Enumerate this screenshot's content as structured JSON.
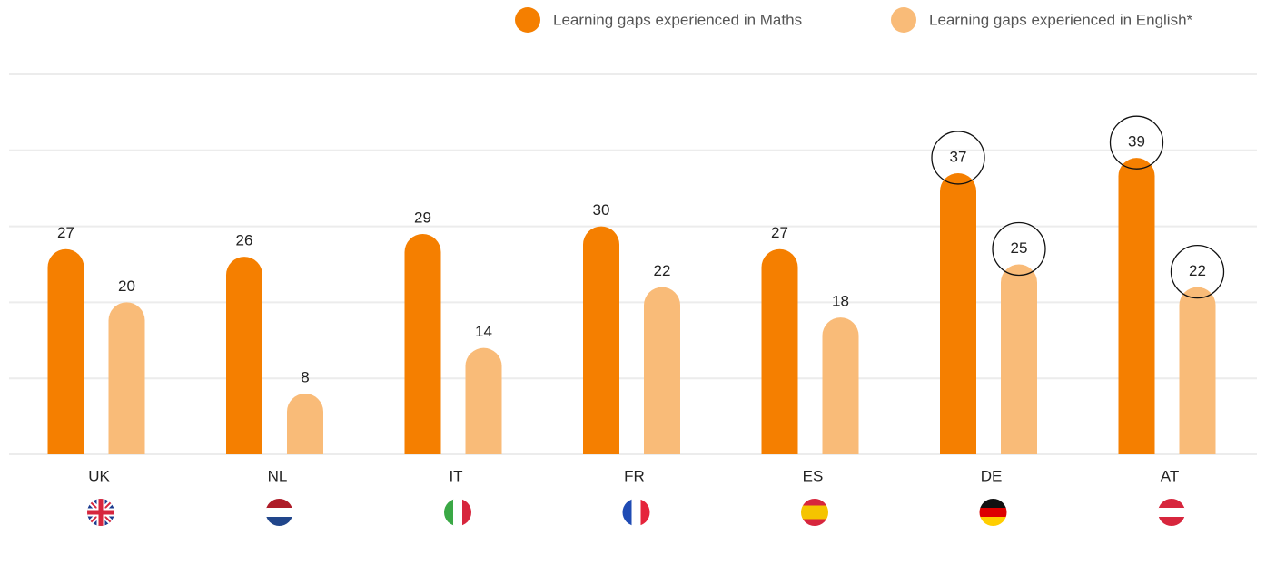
{
  "chart_data": {
    "type": "bar",
    "categories": [
      "UK",
      "NL",
      "IT",
      "FR",
      "ES",
      "DE",
      "AT"
    ],
    "series": [
      {
        "name": "Learning gaps experienced in Maths",
        "color": "#f57f00",
        "values": [
          27,
          26,
          29,
          30,
          27,
          37,
          39
        ]
      },
      {
        "name": "Learning gaps experienced in English*",
        "color": "#f9bb78",
        "values": [
          20,
          8,
          14,
          22,
          18,
          25,
          22
        ]
      }
    ],
    "ylim": [
      0,
      50
    ],
    "yticks": [
      0,
      10,
      20,
      30,
      40,
      50
    ],
    "grid": true,
    "highlight_categories": [
      5,
      6
    ],
    "legend": "top-right"
  }
}
